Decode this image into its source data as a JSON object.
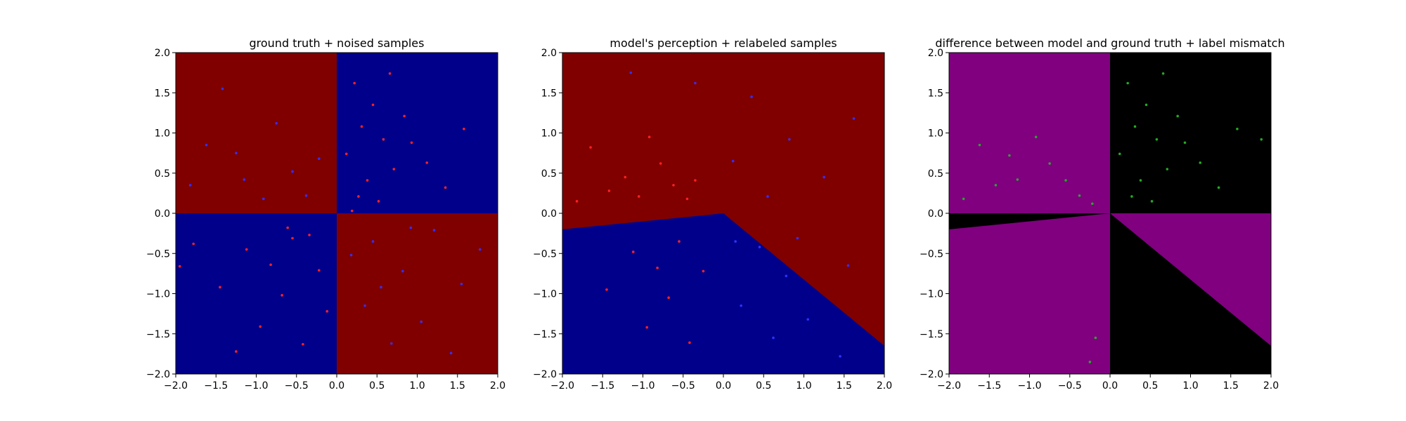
{
  "figure": {
    "background": "#ffffff"
  },
  "chart_data": [
    {
      "type": "scatter",
      "title": "ground truth + noised samples",
      "xlabel": "",
      "ylabel": "",
      "xlim": [
        -2.0,
        2.0
      ],
      "ylim": [
        -2.0,
        2.0
      ],
      "xticks": [
        "−2.0",
        "−1.5",
        "−1.0",
        "−0.5",
        "0.0",
        "0.5",
        "1.0",
        "1.5",
        "2.0"
      ],
      "yticks": [
        "−2.0",
        "−1.5",
        "−1.0",
        "−0.5",
        "0.0",
        "0.5",
        "1.0",
        "1.5",
        "2.0"
      ],
      "grid": false,
      "regions": [
        {
          "polygon": [
            [
              -2,
              0
            ],
            [
              0,
              0
            ],
            [
              0,
              2
            ],
            [
              -2,
              2
            ]
          ],
          "color": "#800000"
        },
        {
          "polygon": [
            [
              0,
              0
            ],
            [
              2,
              0
            ],
            [
              2,
              2
            ],
            [
              0,
              2
            ]
          ],
          "color": "#00008b"
        },
        {
          "polygon": [
            [
              -2,
              -2
            ],
            [
              0,
              -2
            ],
            [
              0,
              0
            ],
            [
              -2,
              0
            ]
          ],
          "color": "#00008b"
        },
        {
          "polygon": [
            [
              0,
              -2
            ],
            [
              2,
              -2
            ],
            [
              2,
              0
            ],
            [
              0,
              0
            ]
          ],
          "color": "#800000"
        }
      ],
      "points": [
        {
          "x": 0.22,
          "y": 1.62,
          "color": "#ff2020"
        },
        {
          "x": 0.45,
          "y": 1.35,
          "color": "#ff2020"
        },
        {
          "x": 0.31,
          "y": 1.08,
          "color": "#ff2020"
        },
        {
          "x": 0.58,
          "y": 0.92,
          "color": "#ff2020"
        },
        {
          "x": 0.12,
          "y": 0.74,
          "color": "#ff2020"
        },
        {
          "x": 0.71,
          "y": 0.55,
          "color": "#ff2020"
        },
        {
          "x": 0.38,
          "y": 0.41,
          "color": "#ff2020"
        },
        {
          "x": 0.93,
          "y": 0.88,
          "color": "#ff2020"
        },
        {
          "x": 1.12,
          "y": 0.63,
          "color": "#ff2020"
        },
        {
          "x": 0.27,
          "y": 0.21,
          "color": "#ff2020"
        },
        {
          "x": 0.52,
          "y": 0.15,
          "color": "#ff2020"
        },
        {
          "x": 1.35,
          "y": 0.32,
          "color": "#ff2020"
        },
        {
          "x": 0.84,
          "y": 1.21,
          "color": "#ff2020"
        },
        {
          "x": 1.58,
          "y": 1.05,
          "color": "#ff2020"
        },
        {
          "x": 0.66,
          "y": 1.74,
          "color": "#ff2020"
        },
        {
          "x": 0.19,
          "y": 0.03,
          "color": "#ff2020"
        },
        {
          "x": -0.55,
          "y": -0.31,
          "color": "#ff2020"
        },
        {
          "x": -0.82,
          "y": -0.64,
          "color": "#ff2020"
        },
        {
          "x": -0.34,
          "y": -0.27,
          "color": "#ff2020"
        },
        {
          "x": -1.12,
          "y": -0.45,
          "color": "#ff2020"
        },
        {
          "x": -0.68,
          "y": -1.02,
          "color": "#ff2020"
        },
        {
          "x": -0.95,
          "y": -1.41,
          "color": "#ff2020"
        },
        {
          "x": -0.42,
          "y": -1.63,
          "color": "#ff2020"
        },
        {
          "x": -1.45,
          "y": -0.92,
          "color": "#ff2020"
        },
        {
          "x": -1.78,
          "y": -0.38,
          "color": "#ff2020"
        },
        {
          "x": -0.22,
          "y": -0.71,
          "color": "#ff2020"
        },
        {
          "x": -1.25,
          "y": -1.72,
          "color": "#ff2020"
        },
        {
          "x": -0.61,
          "y": -0.18,
          "color": "#ff2020"
        },
        {
          "x": -1.95,
          "y": -0.66,
          "color": "#ff2020"
        },
        {
          "x": -0.12,
          "y": -1.22,
          "color": "#ff2020"
        },
        {
          "x": -1.62,
          "y": 0.85,
          "color": "#3030ff"
        },
        {
          "x": -1.15,
          "y": 0.42,
          "color": "#3030ff"
        },
        {
          "x": -0.75,
          "y": 1.12,
          "color": "#3030ff"
        },
        {
          "x": -0.38,
          "y": 0.22,
          "color": "#3030ff"
        },
        {
          "x": -1.42,
          "y": 1.55,
          "color": "#3030ff"
        },
        {
          "x": -0.22,
          "y": 0.68,
          "color": "#3030ff"
        },
        {
          "x": -0.91,
          "y": 0.18,
          "color": "#3030ff"
        },
        {
          "x": -1.82,
          "y": 0.35,
          "color": "#3030ff"
        },
        {
          "x": -0.55,
          "y": 0.52,
          "color": "#3030ff"
        },
        {
          "x": -1.25,
          "y": 0.75,
          "color": "#3030ff"
        },
        {
          "x": 0.45,
          "y": -0.35,
          "color": "#3030ff"
        },
        {
          "x": 0.82,
          "y": -0.72,
          "color": "#3030ff"
        },
        {
          "x": 1.21,
          "y": -0.21,
          "color": "#3030ff"
        },
        {
          "x": 0.35,
          "y": -1.15,
          "color": "#3030ff"
        },
        {
          "x": 1.55,
          "y": -0.88,
          "color": "#3030ff"
        },
        {
          "x": 0.68,
          "y": -1.62,
          "color": "#3030ff"
        },
        {
          "x": 1.05,
          "y": -1.35,
          "color": "#3030ff"
        },
        {
          "x": 0.18,
          "y": -0.52,
          "color": "#3030ff"
        },
        {
          "x": 1.78,
          "y": -0.45,
          "color": "#3030ff"
        },
        {
          "x": 0.92,
          "y": -0.18,
          "color": "#3030ff"
        },
        {
          "x": 1.42,
          "y": -1.74,
          "color": "#3030ff"
        },
        {
          "x": 0.55,
          "y": -0.92,
          "color": "#3030ff"
        }
      ]
    },
    {
      "type": "scatter",
      "title": "model's perception + relabeled samples",
      "xlabel": "",
      "ylabel": "",
      "xlim": [
        -2.0,
        2.0
      ],
      "ylim": [
        -2.0,
        2.0
      ],
      "xticks": [
        "−2.0",
        "−1.5",
        "−1.0",
        "−0.5",
        "0.0",
        "0.5",
        "1.0",
        "1.5",
        "2.0"
      ],
      "yticks": [
        "−2.0",
        "−1.5",
        "−1.0",
        "−0.5",
        "0.0",
        "0.5",
        "1.0",
        "1.5",
        "2.0"
      ],
      "grid": false,
      "regions": [
        {
          "polygon": [
            [
              -2,
              -2
            ],
            [
              2,
              -2
            ],
            [
              2,
              2
            ],
            [
              -2,
              2
            ]
          ],
          "color": "#800000"
        },
        {
          "polygon": [
            [
              -2,
              -2
            ],
            [
              2,
              -2
            ],
            [
              2,
              -1.65
            ],
            [
              0,
              0
            ],
            [
              -2,
              -0.2
            ]
          ],
          "color": "#00008b"
        }
      ],
      "points": [
        {
          "x": -1.65,
          "y": 0.82,
          "color": "#ff2020"
        },
        {
          "x": -1.22,
          "y": 0.45,
          "color": "#ff2020"
        },
        {
          "x": -0.78,
          "y": 0.62,
          "color": "#ff2020"
        },
        {
          "x": -0.45,
          "y": 0.18,
          "color": "#ff2020"
        },
        {
          "x": -1.05,
          "y": 0.21,
          "color": "#ff2020"
        },
        {
          "x": -0.62,
          "y": 0.35,
          "color": "#ff2020"
        },
        {
          "x": -1.42,
          "y": 0.28,
          "color": "#ff2020"
        },
        {
          "x": -0.92,
          "y": 0.95,
          "color": "#ff2020"
        },
        {
          "x": -0.35,
          "y": 0.41,
          "color": "#ff2020"
        },
        {
          "x": -1.82,
          "y": 0.15,
          "color": "#ff2020"
        },
        {
          "x": -0.55,
          "y": -0.35,
          "color": "#ff2020"
        },
        {
          "x": -0.82,
          "y": -0.68,
          "color": "#ff2020"
        },
        {
          "x": -1.12,
          "y": -0.48,
          "color": "#ff2020"
        },
        {
          "x": -0.68,
          "y": -1.05,
          "color": "#ff2020"
        },
        {
          "x": -0.95,
          "y": -1.42,
          "color": "#ff2020"
        },
        {
          "x": -0.42,
          "y": -1.61,
          "color": "#ff2020"
        },
        {
          "x": -1.45,
          "y": -0.95,
          "color": "#ff2020"
        },
        {
          "x": -0.25,
          "y": -0.72,
          "color": "#ff2020"
        },
        {
          "x": 0.35,
          "y": 1.45,
          "color": "#3030ff"
        },
        {
          "x": 0.82,
          "y": 0.92,
          "color": "#3030ff"
        },
        {
          "x": 1.25,
          "y": 0.45,
          "color": "#3030ff"
        },
        {
          "x": 0.55,
          "y": 0.21,
          "color": "#3030ff"
        },
        {
          "x": 1.62,
          "y": 1.18,
          "color": "#3030ff"
        },
        {
          "x": -0.35,
          "y": 1.62,
          "color": "#3030ff"
        },
        {
          "x": -1.15,
          "y": 1.75,
          "color": "#3030ff"
        },
        {
          "x": 0.12,
          "y": 0.65,
          "color": "#3030ff"
        },
        {
          "x": 0.45,
          "y": -0.42,
          "color": "#3030ff"
        },
        {
          "x": 0.78,
          "y": -0.78,
          "color": "#3030ff"
        },
        {
          "x": 0.22,
          "y": -1.15,
          "color": "#3030ff"
        },
        {
          "x": 0.62,
          "y": -1.55,
          "color": "#3030ff"
        },
        {
          "x": 1.05,
          "y": -1.32,
          "color": "#3030ff"
        },
        {
          "x": 0.15,
          "y": -0.35,
          "color": "#3030ff"
        },
        {
          "x": 1.45,
          "y": -1.78,
          "color": "#3030ff"
        },
        {
          "x": 0.92,
          "y": -0.31,
          "color": "#3030ff"
        },
        {
          "x": 1.55,
          "y": -0.65,
          "color": "#3030ff"
        }
      ]
    },
    {
      "type": "scatter",
      "title": "difference between model and ground truth + label mismatch",
      "xlabel": "",
      "ylabel": "",
      "xlim": [
        -2.0,
        2.0
      ],
      "ylim": [
        -2.0,
        2.0
      ],
      "xticks": [
        "−2.0",
        "−1.5",
        "−1.0",
        "−0.5",
        "0.0",
        "0.5",
        "1.0",
        "1.5",
        "2.0"
      ],
      "yticks": [
        "−2.0",
        "−1.5",
        "−1.0",
        "−0.5",
        "0.0",
        "0.5",
        "1.0",
        "1.5",
        "2.0"
      ],
      "grid": false,
      "regions": [
        {
          "polygon": [
            [
              -2,
              -2
            ],
            [
              0,
              -2
            ],
            [
              0,
              2
            ],
            [
              -2,
              2
            ]
          ],
          "color": "#800080"
        },
        {
          "polygon": [
            [
              0,
              -2
            ],
            [
              2,
              -2
            ],
            [
              2,
              2
            ],
            [
              0,
              2
            ]
          ],
          "color": "#000000"
        },
        {
          "polygon": [
            [
              0,
              0
            ],
            [
              2,
              0
            ],
            [
              2,
              -1.65
            ]
          ],
          "color": "#800080"
        },
        {
          "polygon": [
            [
              -2,
              0
            ],
            [
              0,
              0
            ],
            [
              -2,
              -0.2
            ]
          ],
          "color": "#000000"
        }
      ],
      "points": [
        {
          "x": -1.62,
          "y": 0.85,
          "color": "#22aa22"
        },
        {
          "x": -1.15,
          "y": 0.42,
          "color": "#22aa22"
        },
        {
          "x": -0.75,
          "y": 0.62,
          "color": "#22aa22"
        },
        {
          "x": -0.38,
          "y": 0.22,
          "color": "#22aa22"
        },
        {
          "x": -1.42,
          "y": 0.35,
          "color": "#22aa22"
        },
        {
          "x": -0.92,
          "y": 0.95,
          "color": "#22aa22"
        },
        {
          "x": -0.55,
          "y": 0.41,
          "color": "#22aa22"
        },
        {
          "x": -1.82,
          "y": 0.18,
          "color": "#22aa22"
        },
        {
          "x": -1.25,
          "y": 0.72,
          "color": "#22aa22"
        },
        {
          "x": -0.22,
          "y": 0.12,
          "color": "#22aa22"
        },
        {
          "x": 0.22,
          "y": 1.62,
          "color": "#22aa22"
        },
        {
          "x": 0.45,
          "y": 1.35,
          "color": "#22aa22"
        },
        {
          "x": 0.31,
          "y": 1.08,
          "color": "#22aa22"
        },
        {
          "x": 0.58,
          "y": 0.92,
          "color": "#22aa22"
        },
        {
          "x": 0.12,
          "y": 0.74,
          "color": "#22aa22"
        },
        {
          "x": 0.71,
          "y": 0.55,
          "color": "#22aa22"
        },
        {
          "x": 0.38,
          "y": 0.41,
          "color": "#22aa22"
        },
        {
          "x": 0.93,
          "y": 0.88,
          "color": "#22aa22"
        },
        {
          "x": 1.12,
          "y": 0.63,
          "color": "#22aa22"
        },
        {
          "x": 0.27,
          "y": 0.21,
          "color": "#22aa22"
        },
        {
          "x": 0.52,
          "y": 0.15,
          "color": "#22aa22"
        },
        {
          "x": 1.35,
          "y": 0.32,
          "color": "#22aa22"
        },
        {
          "x": 0.84,
          "y": 1.21,
          "color": "#22aa22"
        },
        {
          "x": 1.58,
          "y": 1.05,
          "color": "#22aa22"
        },
        {
          "x": 0.66,
          "y": 1.74,
          "color": "#22aa22"
        },
        {
          "x": 1.88,
          "y": 0.92,
          "color": "#22aa22"
        },
        {
          "x": -0.25,
          "y": -1.85,
          "color": "#22aa22"
        },
        {
          "x": -0.18,
          "y": -1.55,
          "color": "#22aa22"
        }
      ]
    }
  ]
}
